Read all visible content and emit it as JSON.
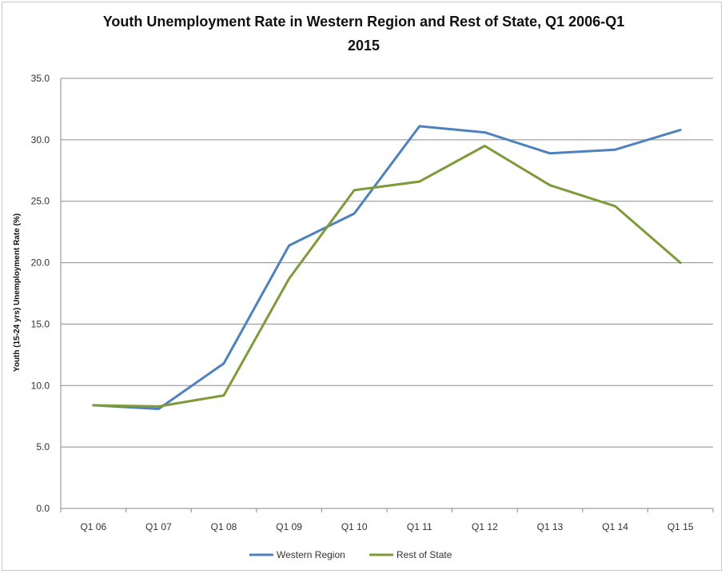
{
  "chart_data": {
    "type": "line",
    "title_line1": "Youth Unemployment Rate in Western Region and Rest of State, Q1 2006-Q1",
    "title_line2": "2015",
    "xlabel": "",
    "ylabel": "Youth (15-24 yrs) Unemployment Rate (%)",
    "ylim": [
      0,
      35
    ],
    "yticks": [
      "0.0",
      "5.0",
      "10.0",
      "15.0",
      "20.0",
      "25.0",
      "30.0",
      "35.0"
    ],
    "ytick_values": [
      0,
      5,
      10,
      15,
      20,
      25,
      30,
      35
    ],
    "categories": [
      "Q1 06",
      "Q1 07",
      "Q1 08",
      "Q1 09",
      "Q1 10",
      "Q1 11",
      "Q1 12",
      "Q1 13",
      "Q1 14",
      "Q1 15"
    ],
    "grid": "horizontal",
    "legend_position": "bottom",
    "series": [
      {
        "name": "Western Region",
        "color": "#4f81bd",
        "values": [
          8.4,
          8.1,
          11.8,
          21.4,
          24.0,
          31.1,
          30.6,
          28.9,
          29.2,
          30.8
        ]
      },
      {
        "name": "Rest of State",
        "color": "#7f9a3a",
        "values": [
          8.4,
          8.3,
          9.2,
          18.7,
          25.9,
          26.6,
          29.5,
          26.3,
          24.6,
          20.0
        ]
      }
    ]
  }
}
